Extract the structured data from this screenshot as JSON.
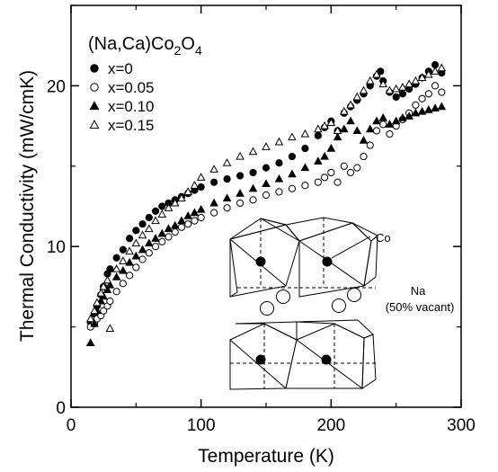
{
  "chart_data": {
    "type": "scatter",
    "title_parts": {
      "base": "(Na,Ca)Co",
      "sub1": "2",
      "mid": "O",
      "sub2": "4"
    },
    "xlabel": "Temperature (K)",
    "ylabel": "Thermal Conductivity (mW/cmK)",
    "xlim": [
      0,
      300
    ],
    "ylim": [
      0,
      25
    ],
    "xticks": [
      0,
      100,
      200,
      300
    ],
    "yticks": [
      0,
      10,
      20
    ],
    "grid": false,
    "legend_position": "top-left",
    "series": [
      {
        "name": "x=0",
        "marker": "filled-circle",
        "x": [
          15,
          18,
          20,
          23,
          25,
          28,
          30,
          35,
          40,
          45,
          50,
          55,
          60,
          65,
          70,
          75,
          80,
          85,
          90,
          95,
          100,
          110,
          120,
          130,
          140,
          150,
          160,
          170,
          180,
          190,
          195,
          200,
          205,
          210,
          215,
          220,
          225,
          230,
          235,
          238,
          240,
          245,
          250,
          255,
          260,
          265,
          270,
          275,
          280,
          285
        ],
        "y": [
          5.3,
          5.8,
          6.3,
          7.0,
          7.5,
          8.3,
          8.6,
          9.3,
          9.8,
          10.5,
          11.0,
          11.4,
          11.8,
          12.2,
          12.5,
          12.7,
          12.9,
          13.1,
          13.3,
          13.5,
          13.7,
          14.0,
          14.2,
          14.4,
          14.6,
          14.9,
          15.2,
          15.6,
          16.1,
          16.9,
          17.4,
          17.8,
          17.2,
          18.3,
          18.7,
          19.1,
          19.5,
          20.0,
          20.6,
          20.9,
          20.3,
          19.6,
          19.3,
          19.5,
          19.8,
          20.1,
          20.5,
          20.9,
          21.3,
          20.8
        ]
      },
      {
        "name": "x=0.05",
        "marker": "open-circle",
        "x": [
          15,
          18,
          20,
          23,
          25,
          28,
          30,
          35,
          40,
          45,
          50,
          55,
          60,
          65,
          70,
          75,
          80,
          85,
          90,
          95,
          100,
          110,
          120,
          130,
          140,
          150,
          160,
          170,
          180,
          190,
          195,
          200,
          205,
          210,
          215,
          220,
          225,
          230,
          235,
          240,
          245,
          250,
          255,
          260,
          265,
          270,
          275,
          280,
          285
        ],
        "y": [
          5.0,
          5.2,
          5.5,
          5.7,
          6.0,
          6.3,
          6.6,
          7.2,
          7.7,
          8.2,
          8.7,
          9.2,
          9.6,
          10.0,
          10.3,
          10.6,
          10.9,
          11.2,
          11.4,
          11.6,
          11.8,
          12.1,
          12.4,
          12.7,
          12.9,
          13.2,
          13.4,
          13.6,
          13.8,
          14.0,
          14.3,
          14.6,
          14.0,
          15.0,
          14.6,
          14.9,
          15.6,
          16.3,
          17.2,
          17.6,
          17.0,
          17.5,
          17.9,
          18.3,
          18.8,
          19.2,
          19.5,
          20.0,
          19.6
        ]
      },
      {
        "name": "x=0.10",
        "marker": "filled-triangle",
        "x": [
          15,
          18,
          20,
          23,
          25,
          28,
          30,
          35,
          40,
          45,
          50,
          55,
          60,
          65,
          70,
          75,
          80,
          85,
          90,
          95,
          100,
          110,
          120,
          130,
          140,
          150,
          160,
          170,
          180,
          190,
          195,
          200,
          205,
          210,
          215,
          220,
          225,
          230,
          235,
          240,
          245,
          250,
          255,
          260,
          265,
          270,
          275,
          280,
          285
        ],
        "y": [
          4.0,
          5.2,
          6.0,
          6.6,
          6.9,
          7.3,
          7.6,
          8.1,
          8.5,
          9.0,
          9.4,
          9.8,
          10.2,
          10.5,
          10.8,
          11.1,
          11.3,
          11.6,
          11.9,
          12.1,
          12.3,
          12.7,
          13.0,
          13.3,
          13.6,
          13.9,
          14.2,
          14.5,
          14.9,
          15.3,
          15.6,
          16.1,
          16.8,
          17.3,
          17.8,
          17.2,
          16.6,
          17.3,
          17.8,
          18.0,
          17.6,
          17.8,
          18.0,
          18.1,
          18.3,
          18.4,
          18.5,
          18.6,
          18.7
        ]
      },
      {
        "name": "x=0.15",
        "marker": "open-triangle",
        "x": [
          15,
          18,
          20,
          23,
          25,
          28,
          30,
          35,
          40,
          45,
          50,
          55,
          60,
          65,
          70,
          75,
          80,
          85,
          90,
          95,
          100,
          110,
          120,
          130,
          140,
          150,
          160,
          170,
          180,
          190,
          195,
          200,
          205,
          210,
          215,
          220,
          225,
          230,
          235,
          240,
          245,
          250,
          255,
          260,
          265,
          270,
          275,
          280,
          285
        ],
        "y": [
          5.5,
          6.0,
          6.5,
          7.1,
          7.5,
          7.9,
          4.9,
          8.6,
          9.1,
          9.7,
          10.2,
          10.7,
          11.1,
          11.6,
          12.0,
          12.4,
          12.7,
          13.0,
          13.4,
          13.8,
          14.3,
          14.8,
          15.2,
          15.6,
          15.9,
          16.2,
          16.5,
          16.8,
          17.0,
          17.3,
          17.5,
          17.7,
          17.2,
          18.4,
          18.8,
          19.3,
          19.7,
          20.3,
          20.7,
          20.1,
          19.7,
          19.8,
          19.9,
          20.1,
          20.3,
          20.5,
          20.7,
          20.9,
          21.1
        ]
      }
    ],
    "inset_labels": {
      "co": "Co",
      "na": "Na",
      "na_note": "(50% vacant)"
    }
  }
}
